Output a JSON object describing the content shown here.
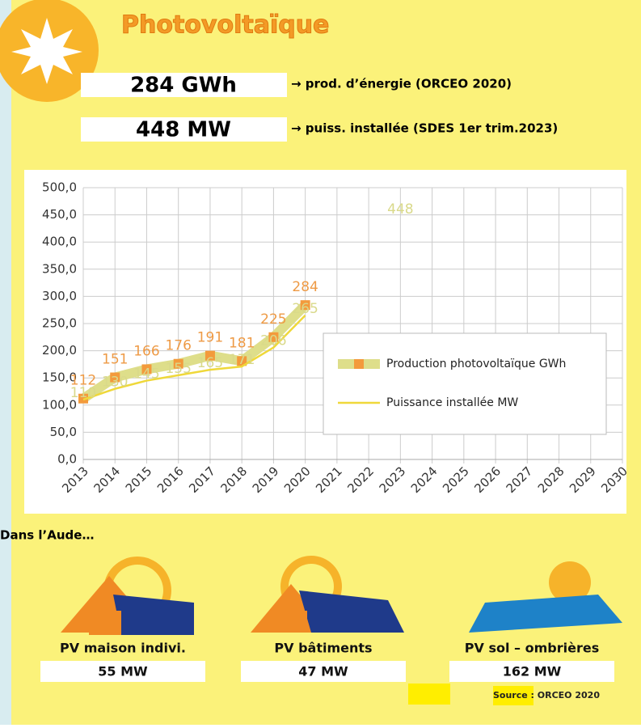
{
  "header": {
    "title": "Photovoltaïque",
    "stats": [
      {
        "value": "284 GWh",
        "label": "→ prod. d’énergie (ORCEO 2020)"
      },
      {
        "value": "448 MW",
        "label": "→ puiss. installée (SDES 1er trim.2023)"
      }
    ]
  },
  "chart_data": {
    "type": "line",
    "categories": [
      "2013",
      "2014",
      "2015",
      "2016",
      "2017",
      "2018",
      "2019",
      "2020",
      "2021",
      "2022",
      "2023",
      "2024",
      "2025",
      "2026",
      "2027",
      "2028",
      "2029",
      "2030"
    ],
    "series": [
      {
        "name": "Production photovoltaïque GWh",
        "color": "#dede8a",
        "marker_color": "#f39a3c",
        "label_color": "#ee9a45",
        "values": [
          112,
          151,
          166,
          176,
          191,
          181,
          225,
          284,
          null,
          null,
          null,
          null,
          null,
          null,
          null,
          null,
          null,
          null
        ]
      },
      {
        "name": "Puissance installée MW",
        "color": "#efd83a",
        "label_color": "#d9d98a",
        "values": [
          110,
          130,
          145,
          155,
          165,
          171,
          206,
          265,
          null,
          null,
          448,
          null,
          null,
          null,
          null,
          null,
          null,
          null
        ]
      }
    ],
    "ylim": [
      0,
      500
    ],
    "yticks": [
      {
        "value": 0,
        "label": "0,0"
      },
      {
        "value": 50,
        "label": "50,0"
      },
      {
        "value": 100,
        "label": "100,0"
      },
      {
        "value": 150,
        "label": "150,0"
      },
      {
        "value": 200,
        "label": "200,0"
      },
      {
        "value": 250,
        "label": "250,0"
      },
      {
        "value": 300,
        "label": "300,0"
      },
      {
        "value": 350,
        "label": "350,0"
      },
      {
        "value": 400,
        "label": "400,0"
      },
      {
        "value": 450,
        "label": "450,0"
      },
      {
        "value": 500,
        "label": "500,0"
      }
    ],
    "grid": true,
    "legend": "right"
  },
  "section": {
    "title": "Dans l’Aude…",
    "items": [
      {
        "label": "PV maison indivi.",
        "value": "55 MW"
      },
      {
        "label": "PV bâtiments",
        "value": "47 MW"
      },
      {
        "label": "PV sol – ombrières",
        "value": "162 MW"
      }
    ],
    "source": "Source : ORCEO 2020"
  }
}
